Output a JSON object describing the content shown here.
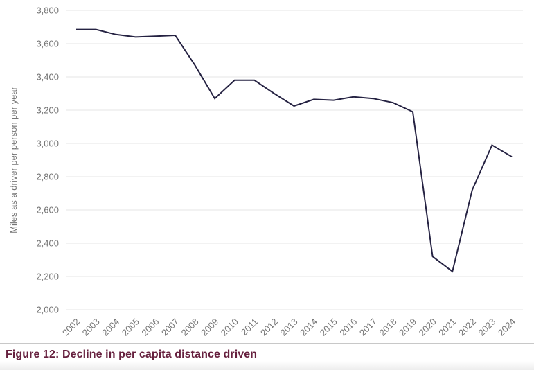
{
  "chart_data": {
    "type": "line",
    "title": "",
    "xlabel": "",
    "ylabel": "Miles as a driver per person per year",
    "categories": [
      "2002",
      "2003",
      "2004",
      "2005",
      "2006",
      "2007",
      "2008",
      "2009",
      "2010",
      "2011",
      "2012",
      "2013",
      "2014",
      "2015",
      "2016",
      "2017",
      "2018",
      "2019",
      "2020",
      "2021",
      "2022",
      "2023",
      "2024"
    ],
    "series": [
      {
        "name": "Miles as a driver per person per year",
        "values": [
          3685,
          3685,
          3655,
          3640,
          3645,
          3650,
          3470,
          3270,
          3380,
          3380,
          3300,
          3225,
          3265,
          3260,
          3280,
          3270,
          3245,
          3190,
          2320,
          2230,
          2720,
          2990,
          2920
        ]
      }
    ],
    "ylim": [
      2000,
      3800
    ],
    "y_ticks": [
      {
        "value": 2000,
        "label": "2,000"
      },
      {
        "value": 2200,
        "label": "2,200"
      },
      {
        "value": 2400,
        "label": "2,400"
      },
      {
        "value": 2600,
        "label": "2,600"
      },
      {
        "value": 2800,
        "label": "2,800"
      },
      {
        "value": 3000,
        "label": "3,000"
      },
      {
        "value": 3200,
        "label": "3,200"
      },
      {
        "value": 3400,
        "label": "3,400"
      },
      {
        "value": 3600,
        "label": "3,600"
      },
      {
        "value": 3800,
        "label": "3,800"
      }
    ],
    "grid": "horizontal",
    "legend_position": "none"
  },
  "caption": {
    "text": "Figure 12: Decline in per capita distance driven"
  },
  "colors": {
    "line": "#252242",
    "grid": "#e6e6e6",
    "tick_text": "#757575",
    "axis_title_text": "#757575",
    "caption_text": "#66203e",
    "divider": "#c8c8c8",
    "background": "#ffffff"
  }
}
